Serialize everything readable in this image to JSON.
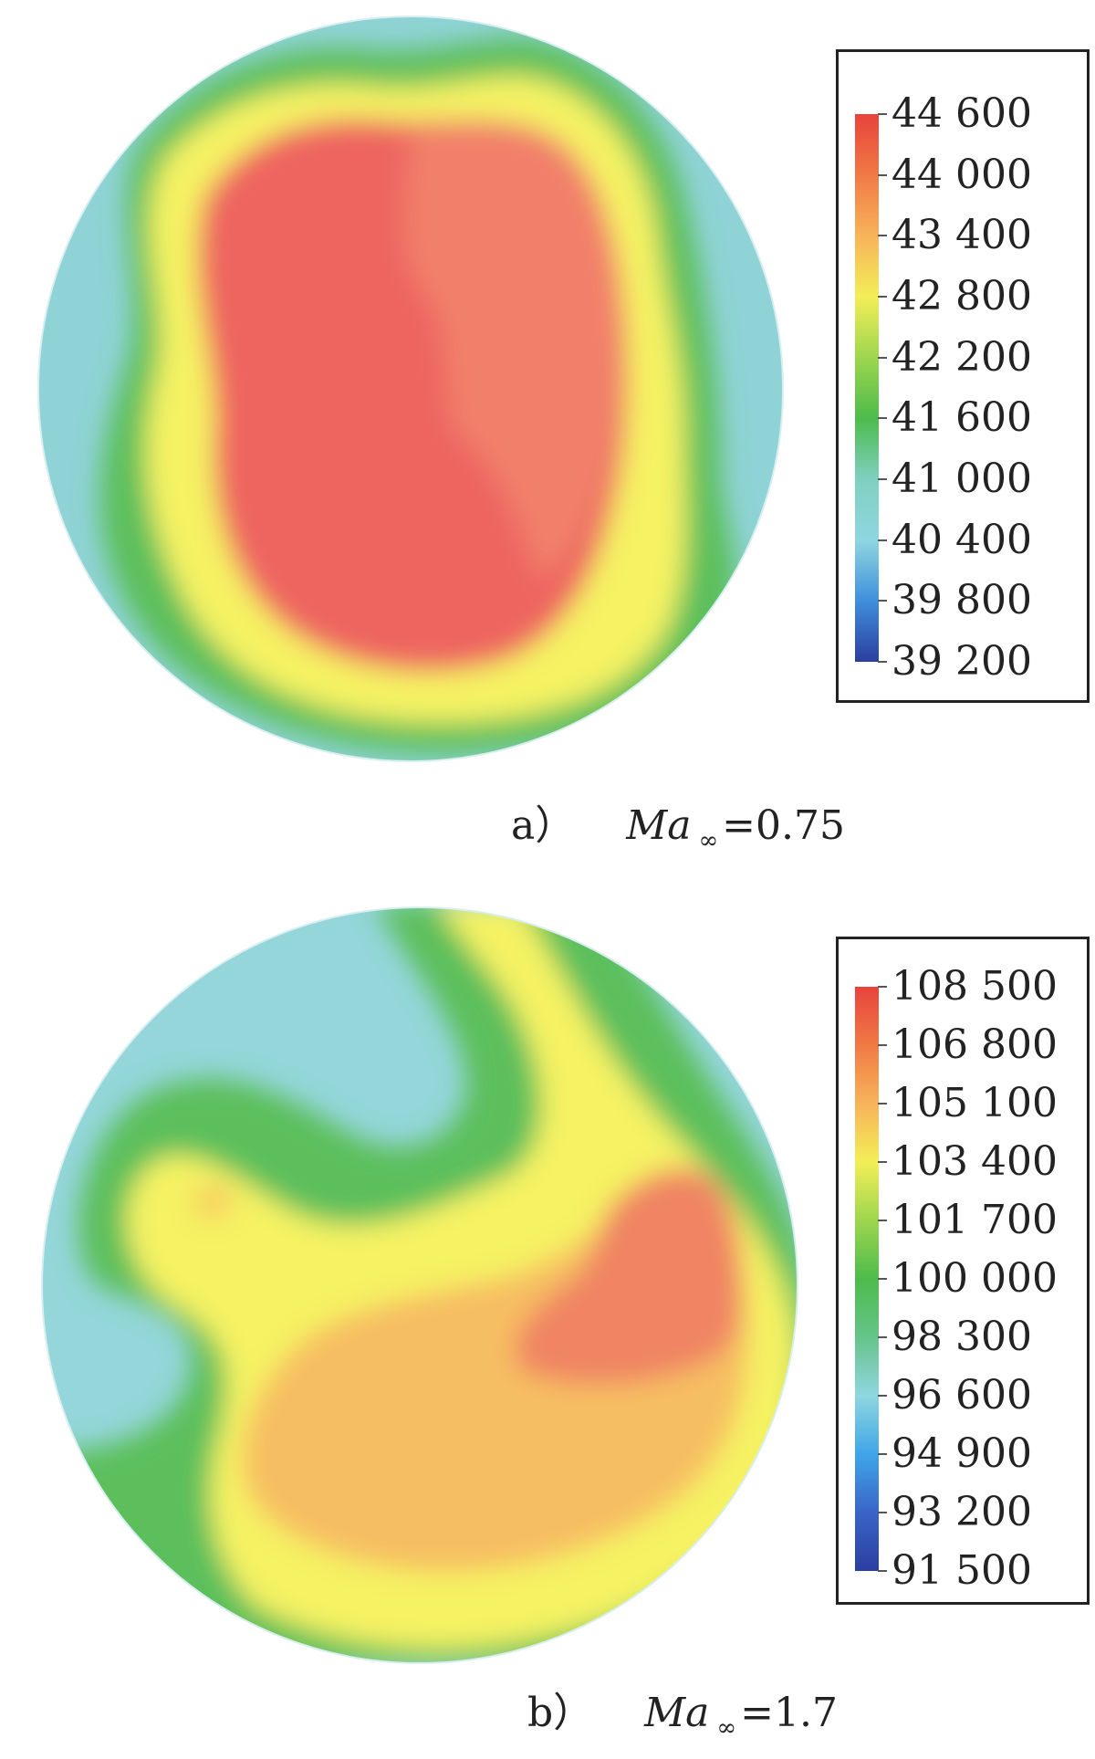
{
  "chart_data": [
    {
      "type": "heatmap",
      "panel_label": "a）",
      "condition": {
        "symbol": "Ma",
        "subscript": "∞",
        "value": "=0.75"
      },
      "colorbar": {
        "min": 39200,
        "max": 44600,
        "ticks": [
          44600,
          44000,
          43400,
          42800,
          42200,
          41600,
          41000,
          40400,
          39800,
          39200
        ],
        "tick_labels": [
          "44 600",
          "44 000",
          "43 400",
          "42 800",
          "42 200",
          "41 600",
          "41 000",
          "40 400",
          "39 800",
          "39 200"
        ],
        "colors_top_to_bottom": [
          "#e8433c",
          "#f07a45",
          "#f7b35a",
          "#f3ee57",
          "#9ed64e",
          "#4dbb4c",
          "#7fd0c0",
          "#8fd6e0",
          "#3f8fdc",
          "#2c3ea0"
        ]
      },
      "regions": [
        {
          "zone": "rim",
          "approx_value": 40700,
          "color": "#8fd3d6"
        },
        {
          "zone": "outer band",
          "approx_value": 42000,
          "color": "#5cbf5b"
        },
        {
          "zone": "middle band",
          "approx_value": 43200,
          "color": "#f5f264"
        },
        {
          "zone": "core",
          "approx_value": 44400,
          "color": "#ee6560"
        },
        {
          "zone": "core upper-right",
          "approx_value": 44100,
          "color": "#f1806a"
        }
      ]
    },
    {
      "type": "heatmap",
      "panel_label": "b）",
      "condition": {
        "symbol": "Ma",
        "subscript": "∞",
        "value": "=1.7"
      },
      "colorbar": {
        "min": 91500,
        "max": 108500,
        "ticks": [
          108500,
          106800,
          105100,
          103400,
          101700,
          100000,
          98300,
          96600,
          94900,
          93200,
          91500
        ],
        "tick_labels": [
          "108 500",
          "106 800",
          "105 100",
          "103 400",
          "101 700",
          "100 000",
          "98 300",
          "96 600",
          "94 900",
          "93 200",
          "91 500"
        ],
        "colors_top_to_bottom": [
          "#e8433c",
          "#f07a45",
          "#f7b35a",
          "#f3ee57",
          "#9ed64e",
          "#4dbb4c",
          "#66c48a",
          "#8fd6e0",
          "#3fa6e8",
          "#3a64c8",
          "#2c3ea0"
        ]
      },
      "regions": [
        {
          "zone": "background",
          "approx_value": 95500,
          "color": "#94d6da"
        },
        {
          "zone": "band",
          "approx_value": 99500,
          "color": "#5cbf5b"
        },
        {
          "zone": "swirl",
          "approx_value": 103600,
          "color": "#f5f264"
        },
        {
          "zone": "lower-right lobe",
          "approx_value": 105500,
          "color": "#f6be62"
        },
        {
          "zone": "right streak",
          "approx_value": 107200,
          "color": "#f08463"
        }
      ]
    }
  ]
}
